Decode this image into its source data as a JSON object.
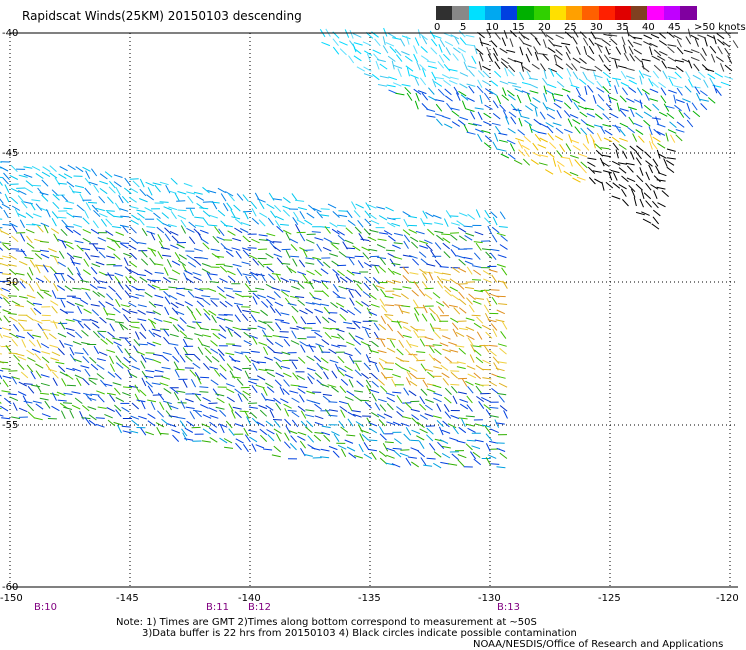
{
  "title": "Rapidscat Winds(25KM) 20150103 descending",
  "legend": {
    "labels": [
      "0",
      "5",
      "10",
      "15",
      "20",
      "25",
      "30",
      "35",
      "40",
      "45",
      ">50 knots"
    ],
    "colors": [
      "#303030",
      "#888888",
      "#00e0ff",
      "#00a8f0",
      "#0040e0",
      "#00b000",
      "#30d000",
      "#ffe000",
      "#ffa000",
      "#ff6000",
      "#ff2000",
      "#e00000",
      "#804020",
      "#ff00ff",
      "#c000ff",
      "#8000a0"
    ]
  },
  "lat_labels": [
    "-40",
    "-45",
    "-50",
    "-55",
    "-60"
  ],
  "lon_labels": [
    "-150",
    "-145",
    "-140",
    "-135",
    "-130",
    "-125",
    "-120"
  ],
  "time_markers": [
    "B:10",
    "B:11",
    "B:12",
    "B:13"
  ],
  "notes": {
    "line1": "Note: 1) Times are GMT 2)Times along bottom correspond to measurement at ~50S",
    "line2": "3)Data buffer is 22 hrs from 20150103 4) Black circles indicate possible contamination",
    "credit": "NOAA/NESDIS/Office of Research and Applications"
  }
}
